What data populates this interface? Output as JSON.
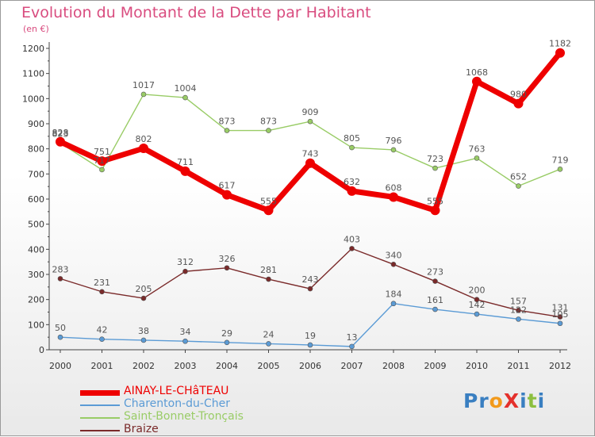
{
  "title": "Evolution du Montant de la Dette par Habitant",
  "subtitle": "(en €)",
  "logo": {
    "text": "ProXiti",
    "letters": [
      {
        "ch": "P",
        "color": "#3a7fc1"
      },
      {
        "ch": "r",
        "color": "#3a7fc1"
      },
      {
        "ch": "o",
        "color": "#f29a1c"
      },
      {
        "ch": "X",
        "color": "#e4312c"
      },
      {
        "ch": "i",
        "color": "#3a7fc1"
      },
      {
        "ch": "t",
        "color": "#8cbf3f"
      },
      {
        "ch": "i",
        "color": "#3a7fc1"
      }
    ]
  },
  "chart_data": {
    "type": "line",
    "title": "Evolution du Montant de la Dette par Habitant",
    "subtitle": "(en €)",
    "xlabel": "",
    "ylabel": "",
    "x": [
      "2000",
      "2001",
      "2002",
      "2003",
      "2004",
      "2005",
      "2006",
      "2007",
      "2008",
      "2009",
      "2010",
      "2011",
      "2012"
    ],
    "ylim": [
      0,
      1200
    ],
    "yticks": [
      0,
      100,
      200,
      300,
      400,
      500,
      600,
      700,
      800,
      900,
      1000,
      1100,
      1200
    ],
    "grid": false,
    "legend_position": "bottom-left",
    "series": [
      {
        "name": "AINAY-LE-CHâTEAU",
        "color": "#ee0000",
        "values": [
          828,
          751,
          802,
          711,
          617,
          555,
          743,
          632,
          608,
          555,
          1068,
          980,
          1182
        ]
      },
      {
        "name": "Charenton-du-Cher",
        "color": "#5b9bd5",
        "values": [
          50,
          42,
          38,
          34,
          29,
          24,
          19,
          13,
          184,
          161,
          142,
          122,
          105
        ]
      },
      {
        "name": "Saint-Bonnet-Tronçais",
        "color": "#99cc66",
        "values": [
          823,
          717,
          1017,
          1004,
          873,
          873,
          909,
          805,
          796,
          723,
          763,
          652,
          719
        ]
      },
      {
        "name": "Braize",
        "color": "#7a2a2a",
        "values": [
          283,
          231,
          205,
          312,
          326,
          281,
          243,
          403,
          340,
          273,
          200,
          157,
          131
        ]
      }
    ]
  }
}
